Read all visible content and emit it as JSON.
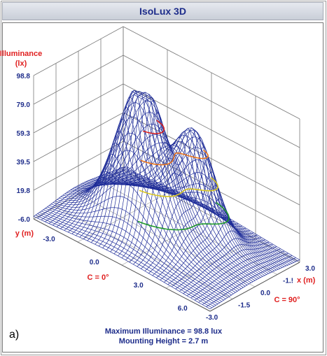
{
  "window": {
    "title": "IsoLux 3D"
  },
  "chart_data": {
    "type": "surface3d",
    "zlabel_line1": "Illuminance",
    "zlabel_line2": "(lx)",
    "z_ticks": [
      "98.8",
      "79.0",
      "59.3",
      "39.5",
      "19.8",
      "-6.0"
    ],
    "zlim": [
      -6.0,
      98.8
    ],
    "ylabel": "y (m)",
    "y_ticks": [
      "-3.0",
      "0.0",
      "3.0",
      "6.0"
    ],
    "xlabel": "x (m)",
    "x_ticks": [
      "-3.0",
      "-1.5",
      "0.0",
      "1.5",
      "3.0"
    ],
    "x_tick_partial": "-1.!",
    "plane_c0": "C = 0°",
    "plane_c90": "C = 90°",
    "max_illuminance": 98.8,
    "isolux_levels": [
      19.8,
      39.5,
      59.3,
      79.0
    ],
    "isolux_colors": [
      "#1f9a2a",
      "#d8c520",
      "#e8741c",
      "#d62020"
    ],
    "mesh_color": "#1e2c98",
    "grid": true
  },
  "footer": {
    "line1": "Maximum Illuminance  =  98.8 lux",
    "line2": "Mounting Height  =  2.7 m"
  },
  "panel_label": "a)"
}
